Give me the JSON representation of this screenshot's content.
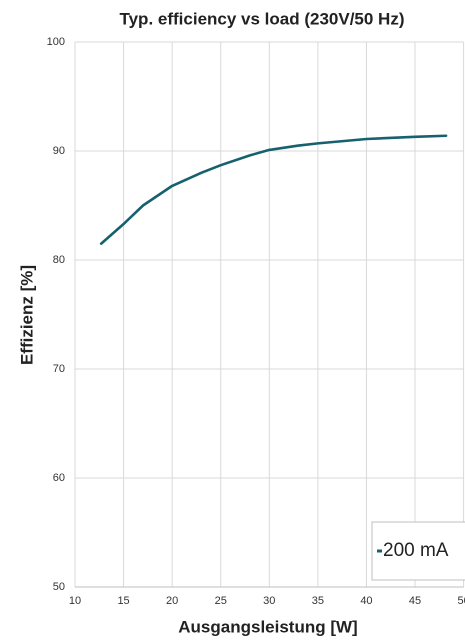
{
  "chart_data": {
    "type": "line",
    "title": "Typ. efficiency vs load (230V/50 Hz)",
    "x_label": "Ausgangsleistung [W]",
    "y_label": "Effizienz [%]",
    "xlim": [
      10,
      50
    ],
    "xticks": [
      10,
      15,
      20,
      25,
      30,
      35,
      40,
      45,
      50
    ],
    "ylim": [
      50,
      100
    ],
    "yticks": [
      50,
      60,
      70,
      80,
      90,
      100
    ],
    "grid": true,
    "legend": "lower right",
    "series": [
      {
        "name": "200 mA",
        "color": "#17606e",
        "x": [
          12.7,
          15,
          17,
          20,
          23,
          25,
          28,
          30,
          33,
          35,
          40,
          45,
          48.2
        ],
        "values": [
          81.5,
          83.3,
          85,
          86.8,
          88,
          88.7,
          89.6,
          90.1,
          90.5,
          90.7,
          91.1,
          91.3,
          91.4
        ]
      }
    ]
  }
}
